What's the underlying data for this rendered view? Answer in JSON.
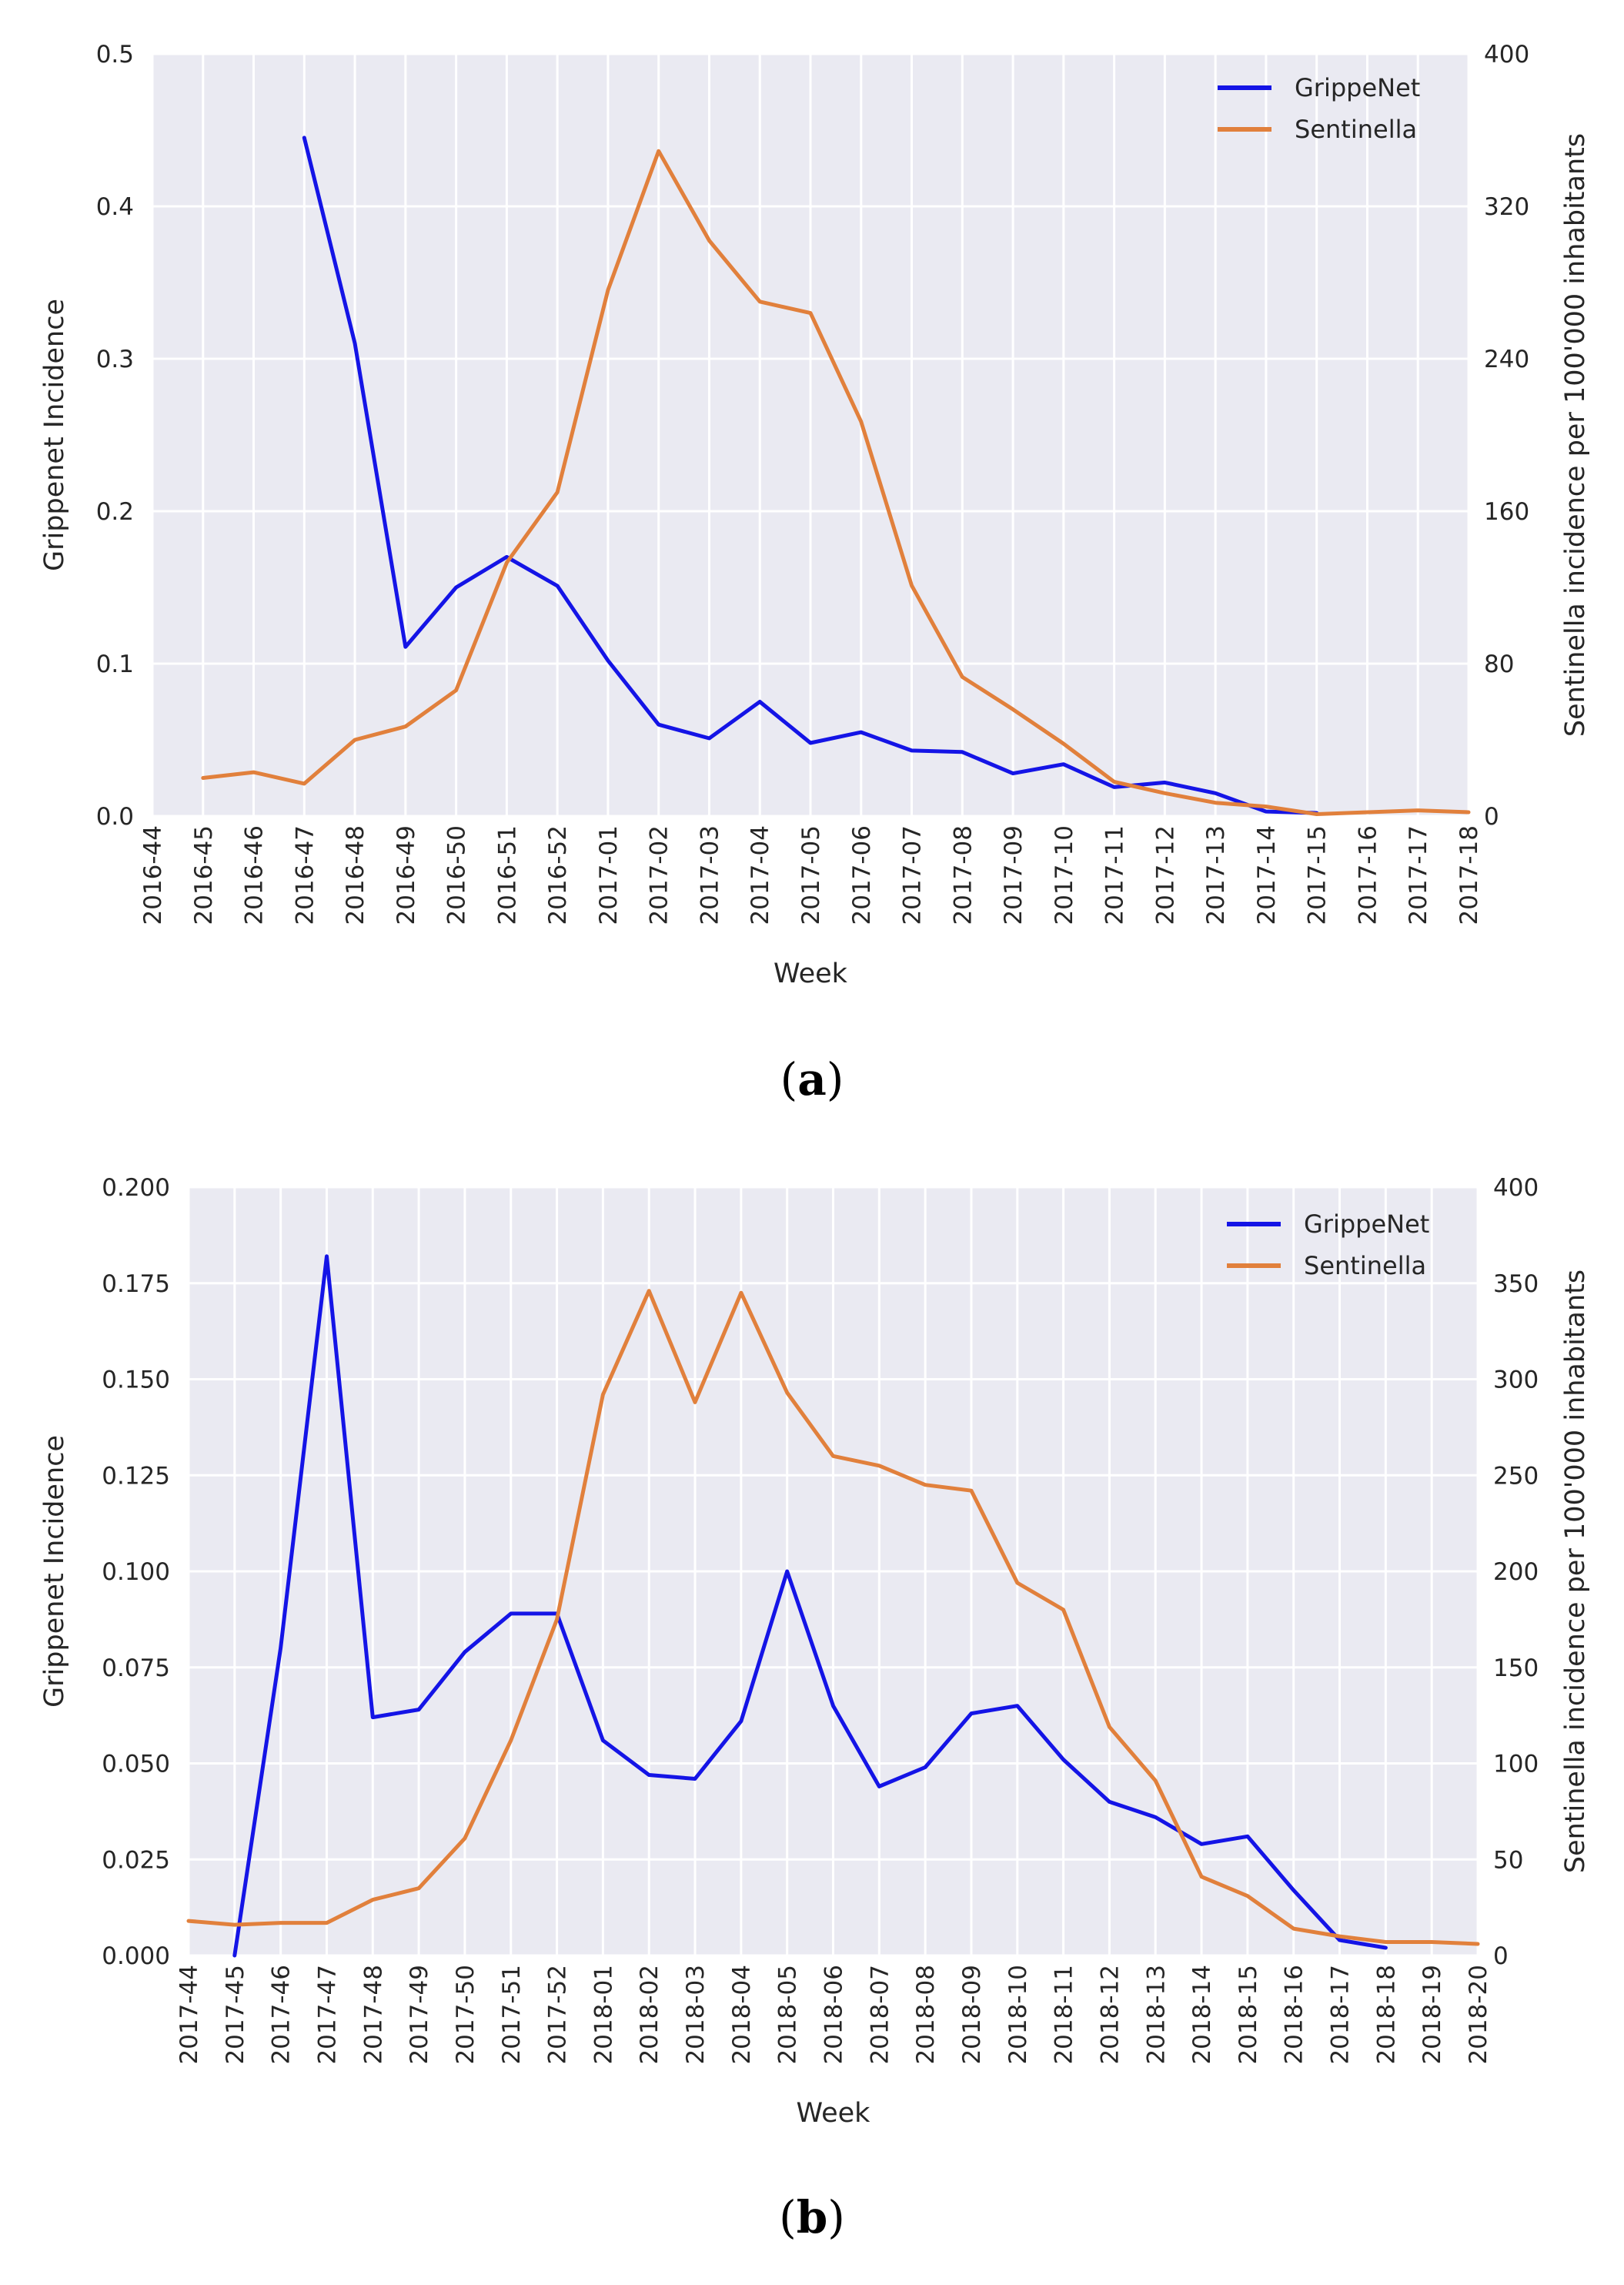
{
  "chart_data": [
    {
      "type": "line",
      "caption": "a",
      "xlabel": "Week",
      "ylabel_left": "Grippenet  Incidence",
      "ylabel_right": "Sentinella incidence per 100'000 inhabitants",
      "ylim_left": [
        0,
        0.5
      ],
      "ylim_right": [
        0,
        400
      ],
      "yticks_left": [
        "0.0",
        "0.1",
        "0.2",
        "0.3",
        "0.4",
        "0.5"
      ],
      "yticks_right": [
        "0",
        "80",
        "160",
        "240",
        "320",
        "400"
      ],
      "legend_position": "top-right",
      "categories": [
        "2016-44",
        "2016-45",
        "2016-46",
        "2016-47",
        "2016-48",
        "2016-49",
        "2016-50",
        "2016-51",
        "2016-52",
        "2017-01",
        "2017-02",
        "2017-03",
        "2017-04",
        "2017-05",
        "2017-06",
        "2017-07",
        "2017-08",
        "2017-09",
        "2017-10",
        "2017-11",
        "2017-12",
        "2017-13",
        "2017-14",
        "2017-15",
        "2017-16",
        "2017-17",
        "2017-18"
      ],
      "series": [
        {
          "name": "GrippeNet",
          "axis": "left",
          "color": "#1414e6",
          "values": [
            null,
            null,
            null,
            0.445,
            0.31,
            0.111,
            0.15,
            0.17,
            0.151,
            0.102,
            0.06,
            0.051,
            0.075,
            0.048,
            0.055,
            0.043,
            0.042,
            0.028,
            0.034,
            0.019,
            0.022,
            0.015,
            0.003,
            0.002,
            null,
            null,
            null
          ]
        },
        {
          "name": "Sentinella",
          "axis": "right",
          "color": "#e1803c",
          "values": [
            null,
            20,
            23,
            17,
            40,
            47,
            66,
            133,
            170,
            276,
            349,
            302,
            270,
            264,
            207,
            121,
            73,
            56,
            38,
            18,
            12,
            7,
            5,
            1,
            2,
            3,
            2
          ]
        }
      ]
    },
    {
      "type": "line",
      "caption": "b",
      "xlabel": "Week",
      "ylabel_left": "Grippenet  Incidence",
      "ylabel_right": "Sentinella incidence per 100'000 inhabitants",
      "ylim_left": [
        0,
        0.2
      ],
      "ylim_right": [
        0,
        400
      ],
      "yticks_left": [
        "0.000",
        "0.025",
        "0.050",
        "0.075",
        "0.100",
        "0.125",
        "0.150",
        "0.175",
        "0.200"
      ],
      "yticks_right": [
        "0",
        "50",
        "100",
        "150",
        "200",
        "250",
        "300",
        "350",
        "400"
      ],
      "legend_position": "top-right",
      "categories": [
        "2017-44",
        "2017-45",
        "2017-46",
        "2017-47",
        "2017-48",
        "2017-49",
        "2017-50",
        "2017-51",
        "2017-52",
        "2018-01",
        "2018-02",
        "2018-03",
        "2018-04",
        "2018-05",
        "2018-06",
        "2018-07",
        "2018-08",
        "2018-09",
        "2018-10",
        "2018-11",
        "2018-12",
        "2018-13",
        "2018-14",
        "2018-15",
        "2018-16",
        "2018-17",
        "2018-18",
        "2018-19",
        "2018-20"
      ],
      "series": [
        {
          "name": "GrippeNet",
          "axis": "left",
          "color": "#1414e6",
          "values": [
            null,
            0.0,
            0.08,
            0.182,
            0.062,
            0.064,
            0.079,
            0.089,
            0.089,
            0.056,
            0.047,
            0.046,
            0.061,
            0.1,
            0.065,
            0.044,
            0.049,
            0.063,
            0.065,
            0.051,
            0.04,
            0.036,
            0.029,
            0.031,
            0.017,
            0.004,
            0.002,
            null,
            null
          ]
        },
        {
          "name": "Sentinella",
          "axis": "right",
          "color": "#e1803c",
          "values": [
            18,
            16,
            17,
            17,
            29,
            35,
            61,
            112,
            175,
            292,
            346,
            288,
            345,
            293,
            260,
            255,
            245,
            242,
            194,
            180,
            119,
            91,
            41,
            31,
            14,
            10,
            7,
            7,
            6
          ]
        }
      ]
    }
  ]
}
